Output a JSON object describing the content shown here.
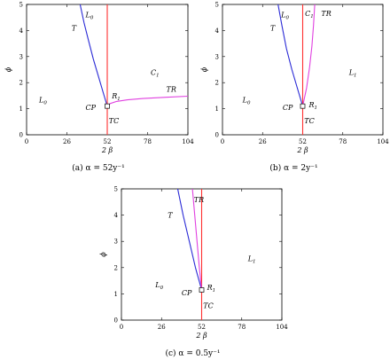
{
  "chart_data": [
    {
      "type": "line",
      "caption": "(a) α = 52y⁻¹",
      "xlabel": "2 β",
      "ylabel": "ϕ",
      "xlim": [
        0,
        104
      ],
      "ylim": [
        0,
        5
      ],
      "xticks": [
        "0",
        "26",
        "52",
        "78",
        "104"
      ],
      "yticks": [
        "0",
        "1",
        "2",
        "3",
        "4",
        "5"
      ],
      "series": [
        {
          "color": "#2b2bd6",
          "x": [
            52,
            49.5,
            46.5,
            43,
            40,
            37,
            34.5
          ],
          "y": [
            1.1,
            1.6,
            2.2,
            2.9,
            3.6,
            4.3,
            5.0
          ]
        },
        {
          "color": "#ff3030",
          "x": [
            52,
            52
          ],
          "y": [
            0,
            5
          ]
        },
        {
          "color": "#e040e0",
          "x": [
            52,
            54,
            58,
            65,
            75,
            90,
            104
          ],
          "y": [
            1.1,
            1.2,
            1.28,
            1.34,
            1.39,
            1.44,
            1.48
          ]
        }
      ],
      "markers": [
        {
          "shape": "square",
          "x": 52,
          "y": 1.1
        }
      ],
      "annotations": [
        {
          "text": "L0",
          "x": 38,
          "y": 4.5
        },
        {
          "text": "T",
          "x": 29,
          "y": 4.0
        },
        {
          "text": "C1",
          "x": 80,
          "y": 2.3
        },
        {
          "text": "TR",
          "x": 90,
          "y": 1.65
        },
        {
          "text": "L0",
          "x": 8,
          "y": 1.25
        },
        {
          "text": "R1",
          "x": 55,
          "y": 1.4
        },
        {
          "text": "CP",
          "x": 38,
          "y": 0.95
        },
        {
          "text": "TC",
          "x": 53,
          "y": 0.45
        }
      ]
    },
    {
      "type": "line",
      "caption": "(b) α = 2y⁻¹",
      "xlabel": "2 β",
      "ylabel": "ϕ",
      "xlim": [
        0,
        104
      ],
      "ylim": [
        0,
        5
      ],
      "xticks": [
        "0",
        "26",
        "52",
        "78",
        "104"
      ],
      "yticks": [
        "0",
        "1",
        "2",
        "3",
        "4",
        "5"
      ],
      "series": [
        {
          "color": "#2b2bd6",
          "x": [
            52,
            48.5,
            45,
            41.5,
            38.5,
            36
          ],
          "y": [
            1.1,
            1.8,
            2.5,
            3.3,
            4.2,
            5.0
          ]
        },
        {
          "color": "#ff3030",
          "x": [
            52,
            52
          ],
          "y": [
            0,
            5
          ]
        },
        {
          "color": "#e040e0",
          "x": [
            52,
            54.5,
            56.5,
            58,
            59,
            59.8
          ],
          "y": [
            1.1,
            1.8,
            2.6,
            3.4,
            4.2,
            5.0
          ]
        }
      ],
      "markers": [
        {
          "shape": "square",
          "x": 52,
          "y": 1.1
        }
      ],
      "annotations": [
        {
          "text": "L0",
          "x": 38,
          "y": 4.5
        },
        {
          "text": "T",
          "x": 31,
          "y": 4.0
        },
        {
          "text": "C1",
          "x": 53.5,
          "y": 4.55
        },
        {
          "text": "TR",
          "x": 64,
          "y": 4.55
        },
        {
          "text": "L1",
          "x": 82,
          "y": 2.3
        },
        {
          "text": "L0",
          "x": 13,
          "y": 1.25
        },
        {
          "text": "R1",
          "x": 56,
          "y": 1.05
        },
        {
          "text": "CP",
          "x": 39,
          "y": 0.95
        },
        {
          "text": "TC",
          "x": 53,
          "y": 0.45
        }
      ]
    },
    {
      "type": "line",
      "caption": "(c) α = 0.5y⁻¹",
      "xlabel": "2 β",
      "ylabel": "ϕ",
      "xlim": [
        0,
        104
      ],
      "ylim": [
        0,
        5
      ],
      "xticks": [
        "0",
        "26",
        "52",
        "78",
        "104"
      ],
      "yticks": [
        "0",
        "1",
        "2",
        "3",
        "4",
        "5"
      ],
      "series": [
        {
          "color": "#2b2bd6",
          "x": [
            52,
            48,
            44,
            40,
            36.5
          ],
          "y": [
            1.15,
            2.0,
            3.0,
            4.0,
            5.0
          ]
        },
        {
          "color": "#ff3030",
          "x": [
            52,
            52
          ],
          "y": [
            0,
            5
          ]
        },
        {
          "color": "#e040e0",
          "x": [
            52,
            50.5,
            49,
            47.5,
            46
          ],
          "y": [
            1.15,
            2.0,
            3.0,
            4.0,
            5.0
          ]
        }
      ],
      "markers": [
        {
          "shape": "square",
          "x": 52,
          "y": 1.15
        }
      ],
      "annotations": [
        {
          "text": "TR",
          "x": 47,
          "y": 4.5
        },
        {
          "text": "T",
          "x": 30,
          "y": 3.9
        },
        {
          "text": "L1",
          "x": 82,
          "y": 2.25
        },
        {
          "text": "L0",
          "x": 22,
          "y": 1.25
        },
        {
          "text": "R1",
          "x": 55.5,
          "y": 1.15
        },
        {
          "text": "CP",
          "x": 39,
          "y": 0.95
        },
        {
          "text": "TC",
          "x": 53,
          "y": 0.45
        }
      ]
    }
  ]
}
